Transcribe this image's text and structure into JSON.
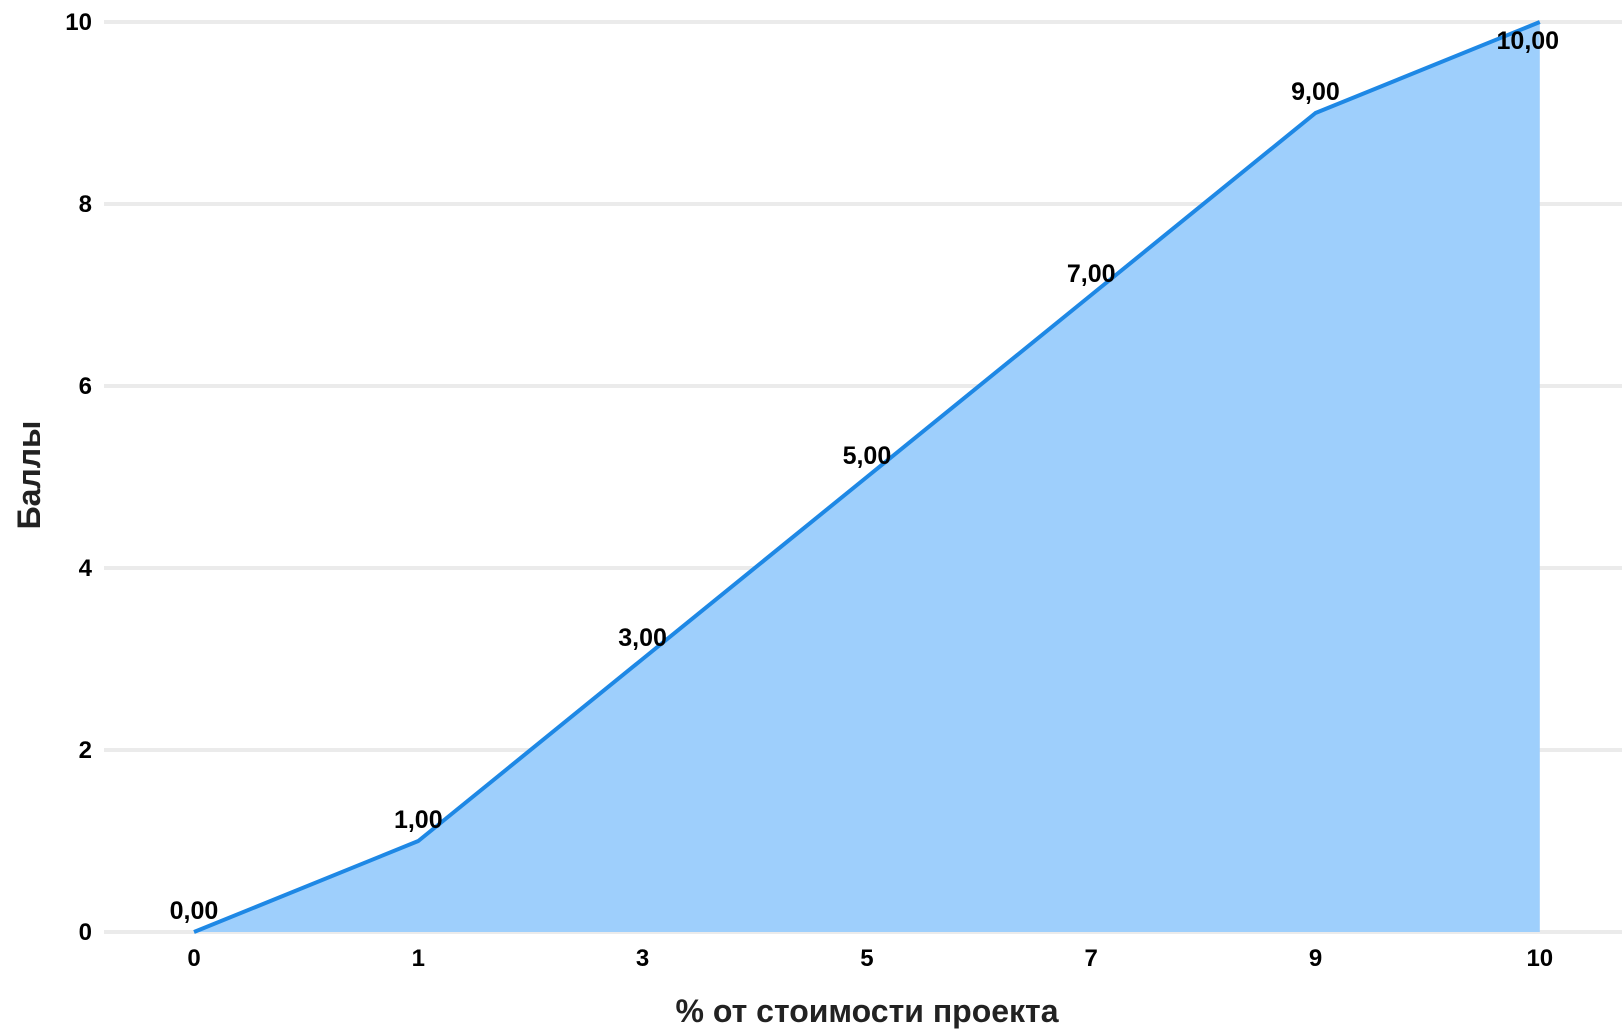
{
  "chart_data": {
    "type": "area",
    "categories": [
      "0",
      "1",
      "3",
      "5",
      "7",
      "9",
      "10"
    ],
    "values": [
      0,
      1,
      3,
      5,
      7,
      9,
      10
    ],
    "data_labels": [
      "0,00",
      "1,00",
      "3,00",
      "5,00",
      "7,00",
      "9,00",
      "10,00"
    ],
    "y_ticks": [
      "0",
      "2",
      "4",
      "6",
      "8",
      "10"
    ],
    "ylim": [
      0,
      10
    ],
    "xlabel": "% от стоимости проекта",
    "ylabel": "Баллы",
    "title": "",
    "grid": true,
    "legend": "none",
    "colors": {
      "line": "#1e88e5",
      "fill": "#9ecffc",
      "grid": "#ebebeb"
    }
  }
}
